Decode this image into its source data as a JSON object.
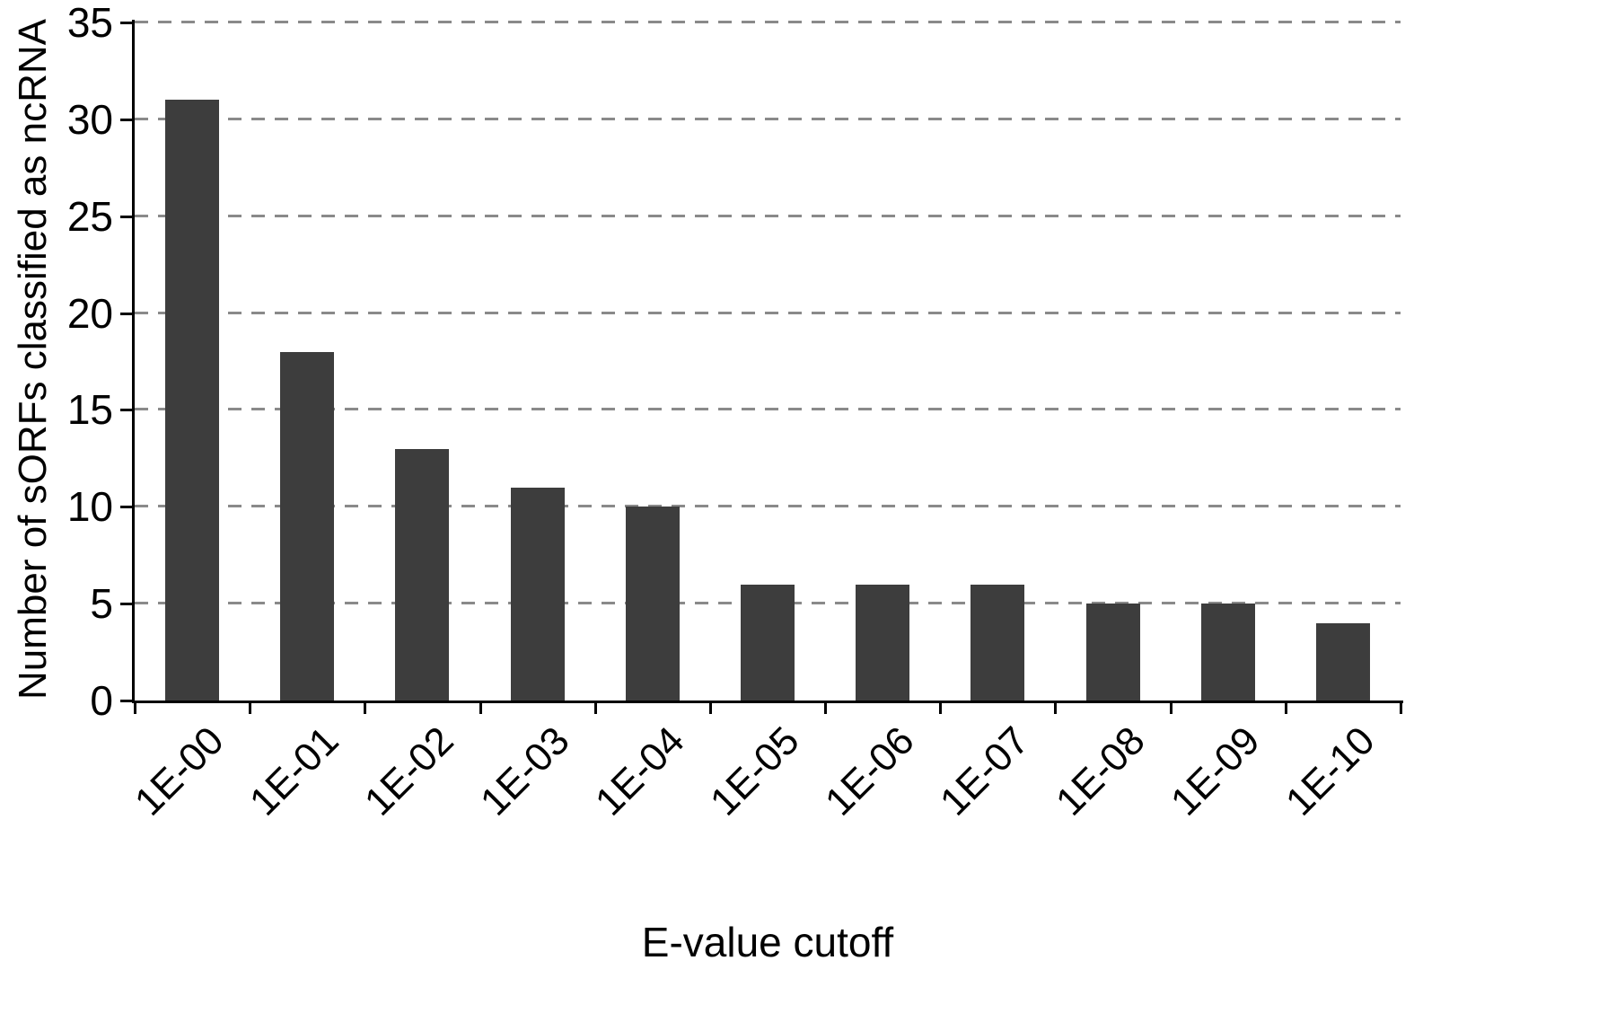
{
  "figure": {
    "background_color": "#ffffff",
    "axis_color": "#000000",
    "gridline_color": "#8a8a8a",
    "gridline_style": "dashed"
  },
  "chart_data": {
    "type": "bar",
    "title": "",
    "xlabel": "E-value cutoff",
    "ylabel": "Number of sORFs classified as ncRNA",
    "categories": [
      "1E-00",
      "1E-01",
      "1E-02",
      "1E-03",
      "1E-04",
      "1E-05",
      "1E-06",
      "1E-07",
      "1E-08",
      "1E-09",
      "1E-10"
    ],
    "values": [
      31,
      18,
      13,
      11,
      10,
      6,
      6,
      6,
      5,
      5,
      4
    ],
    "ylim": [
      0,
      35
    ],
    "yticks": [
      0,
      5,
      10,
      15,
      20,
      25,
      30,
      35
    ],
    "grid": "horizontal dashed gridlines at each y tick",
    "legend": "none",
    "bar_color": "#3d3d3d"
  }
}
